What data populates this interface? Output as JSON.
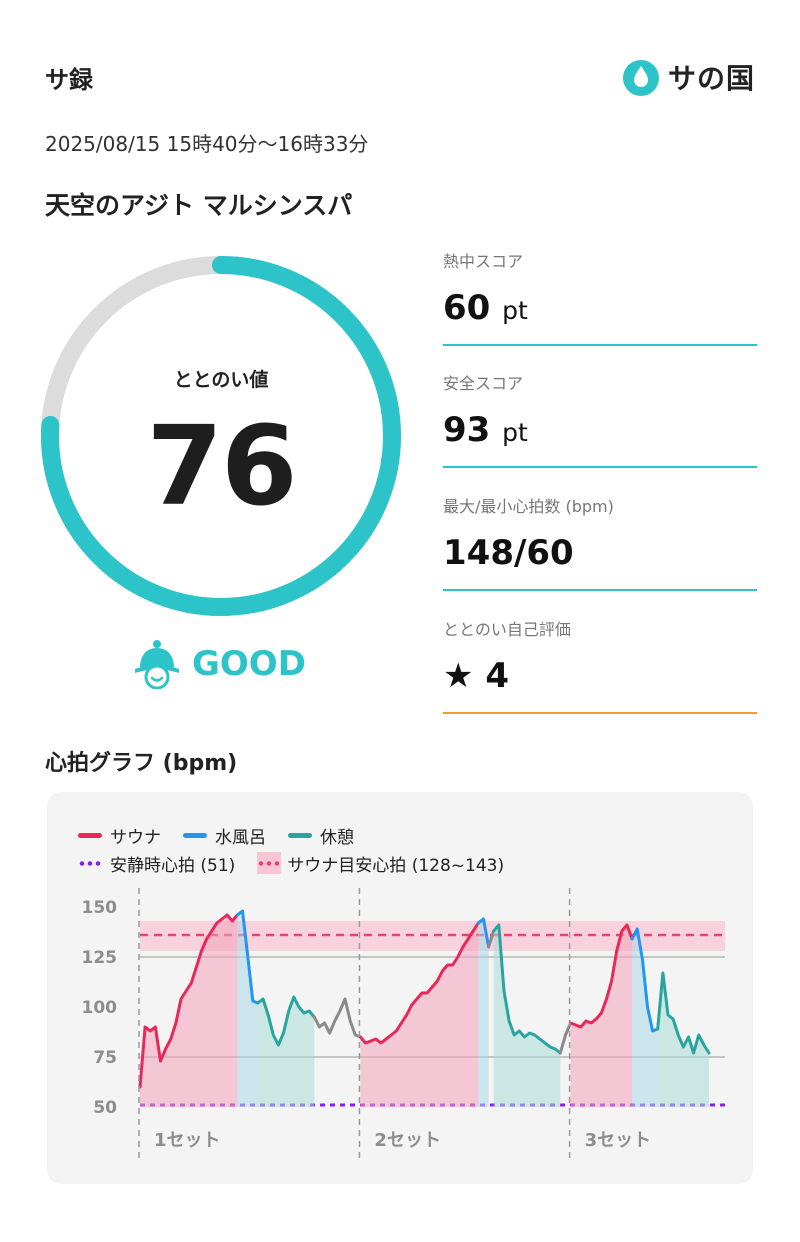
{
  "header": {
    "app_name": "サ録",
    "brand_name": "サの国",
    "datetime": "2025/08/15 15時40分〜16時33分",
    "facility": "天空のアジト マルシンスパ"
  },
  "gauge": {
    "label": "ととのい値",
    "value": "76",
    "fill_fraction": 0.76,
    "rating": "GOOD",
    "color": "#2cc4c8",
    "track_color": "#dcdcdc"
  },
  "stats": [
    {
      "label": "熱中スコア",
      "value": "60",
      "unit": "pt"
    },
    {
      "label": "安全スコア",
      "value": "93",
      "unit": "pt"
    },
    {
      "label": "最大/最小心拍数 (bpm)",
      "value": "148/60",
      "unit": ""
    },
    {
      "label": "ととのい自己評価",
      "value": "★ 4",
      "unit": ""
    }
  ],
  "graph": {
    "title": "心拍グラフ (bpm)",
    "legend": {
      "sauna": "サウナ",
      "water": "水風呂",
      "rest": "休憩",
      "resting_hr": "安静時心拍 (51)",
      "target_hr": "サウナ目安心拍 (128~143)"
    },
    "set_labels": [
      "1セット",
      "2セット",
      "3セット"
    ],
    "y_ticks": [
      "150",
      "125",
      "100",
      "75",
      "50"
    ]
  },
  "chart_data": {
    "type": "line",
    "title": "心拍グラフ (bpm)",
    "ylim": [
      45,
      155
    ],
    "y_ticks": [
      50,
      75,
      100,
      125,
      150
    ],
    "resting_hr": 51,
    "target_band": [
      128,
      143
    ],
    "target_line": 136,
    "colors": {
      "sauna": "#e8285a",
      "water": "#2196f3",
      "rest": "#28a59f",
      "other": "#8a8a8a"
    },
    "sets": [
      "1セット",
      "2セット",
      "3セット"
    ],
    "segments": [
      {
        "phase": "sauna",
        "set": 1,
        "values": [
          60,
          90,
          88,
          90,
          73,
          79,
          84,
          92,
          104,
          108,
          112,
          120,
          128,
          134,
          138,
          142,
          144,
          146,
          143,
          146
        ]
      },
      {
        "phase": "water",
        "set": 1,
        "values": [
          146,
          148,
          126,
          103,
          102
        ]
      },
      {
        "phase": "rest",
        "set": 1,
        "values": [
          102,
          104,
          96,
          86,
          81,
          87,
          98,
          105,
          100,
          97,
          98,
          95
        ]
      },
      {
        "phase": "other",
        "set": 1,
        "values": [
          95,
          90,
          92,
          87,
          93,
          98,
          104,
          93,
          86,
          85
        ]
      },
      {
        "phase": "sauna",
        "set": 2,
        "values": [
          85,
          82,
          83,
          84,
          82,
          84,
          86,
          88,
          92,
          96,
          101,
          104,
          107,
          107,
          110,
          113,
          118,
          121,
          121,
          125,
          130,
          134,
          138,
          142
        ]
      },
      {
        "phase": "water",
        "set": 2,
        "values": [
          142,
          144,
          130
        ]
      },
      {
        "phase": "other",
        "set": 2,
        "values": [
          130,
          138
        ]
      },
      {
        "phase": "rest",
        "set": 2,
        "values": [
          138,
          141,
          108,
          93,
          86,
          88,
          85,
          87,
          86,
          84,
          82,
          80,
          79,
          77
        ]
      },
      {
        "phase": "other",
        "set": 2,
        "values": [
          77,
          86,
          92
        ]
      },
      {
        "phase": "sauna",
        "set": 3,
        "values": [
          92,
          91,
          90,
          93,
          92,
          94,
          97,
          104,
          113,
          128,
          138,
          141,
          134
        ]
      },
      {
        "phase": "water",
        "set": 3,
        "values": [
          134,
          139,
          124,
          100,
          88,
          89
        ]
      },
      {
        "phase": "rest",
        "set": 3,
        "values": [
          89,
          117,
          96,
          94,
          86,
          80,
          85,
          77,
          86,
          81,
          77
        ]
      }
    ]
  }
}
